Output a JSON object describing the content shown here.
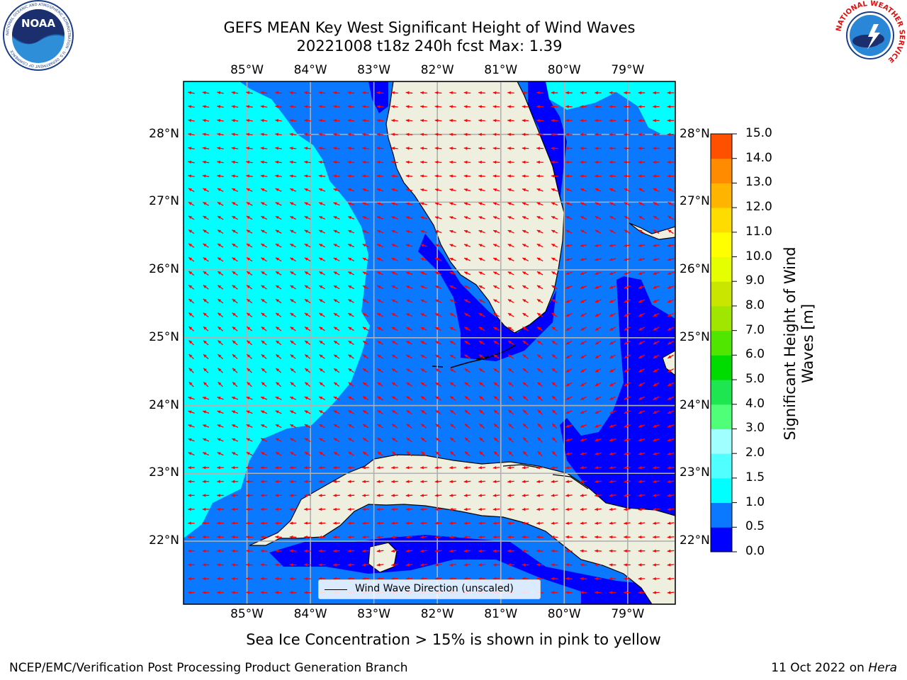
{
  "header": {
    "title_line1": "GEFS MEAN Key West Significant Height of Wind Waves",
    "title_line2": "20221008 t18z 240h fcst   Max: 1.39"
  },
  "logos": {
    "left": "NOAA",
    "left_ring": "NATIONAL OCEANIC AND ATMOSPHERIC ADMINISTRATION · U.S. DEPARTMENT OF COMMERCE",
    "right_ring": "NATIONAL WEATHER SERVICE"
  },
  "map": {
    "lon_labels": [
      "85°W",
      "84°W",
      "83°W",
      "82°W",
      "81°W",
      "80°W",
      "79°W"
    ],
    "lat_labels": [
      "28°N",
      "27°N",
      "26°N",
      "25°N",
      "24°N",
      "23°N",
      "22°N"
    ],
    "lon_range": [
      -86.0,
      -78.25
    ],
    "lat_range": [
      21.07,
      28.78
    ],
    "grid": true,
    "arrow_color": "#ff0000",
    "land_color": "#efefdf",
    "legend_label": "Wind Wave Direction (unscaled)"
  },
  "colorbar": {
    "label_line1": "Significant Height of Wind",
    "label_line2": "Waves [m]",
    "ticks": [
      "15.0",
      "14.0",
      "13.0",
      "12.0",
      "11.0",
      "10.0",
      "9.0",
      "8.0",
      "7.0",
      "6.0",
      "5.0",
      "4.0",
      "3.0",
      "2.0",
      "1.5",
      "1.0",
      "0.5",
      "0.0"
    ],
    "colors_bottom_to_top": [
      "#0000ff",
      "#0a78ff",
      "#00ffff",
      "#50ffff",
      "#a0ffff",
      "#50ff78",
      "#1ee650",
      "#00dc00",
      "#50e600",
      "#a0e600",
      "#c8e600",
      "#e6ff00",
      "#ffff00",
      "#ffdc00",
      "#ffb400",
      "#ff8c00",
      "#ff5000",
      "#ff3200",
      "#ff0000"
    ]
  },
  "subtitle": "Sea Ice Concentration > 15% is shown in pink to yellow",
  "footer": {
    "left": "NCEP/EMC/Verification Post Processing Product Generation Branch",
    "date": "11 Oct 2022 on ",
    "host": "Hera"
  }
}
